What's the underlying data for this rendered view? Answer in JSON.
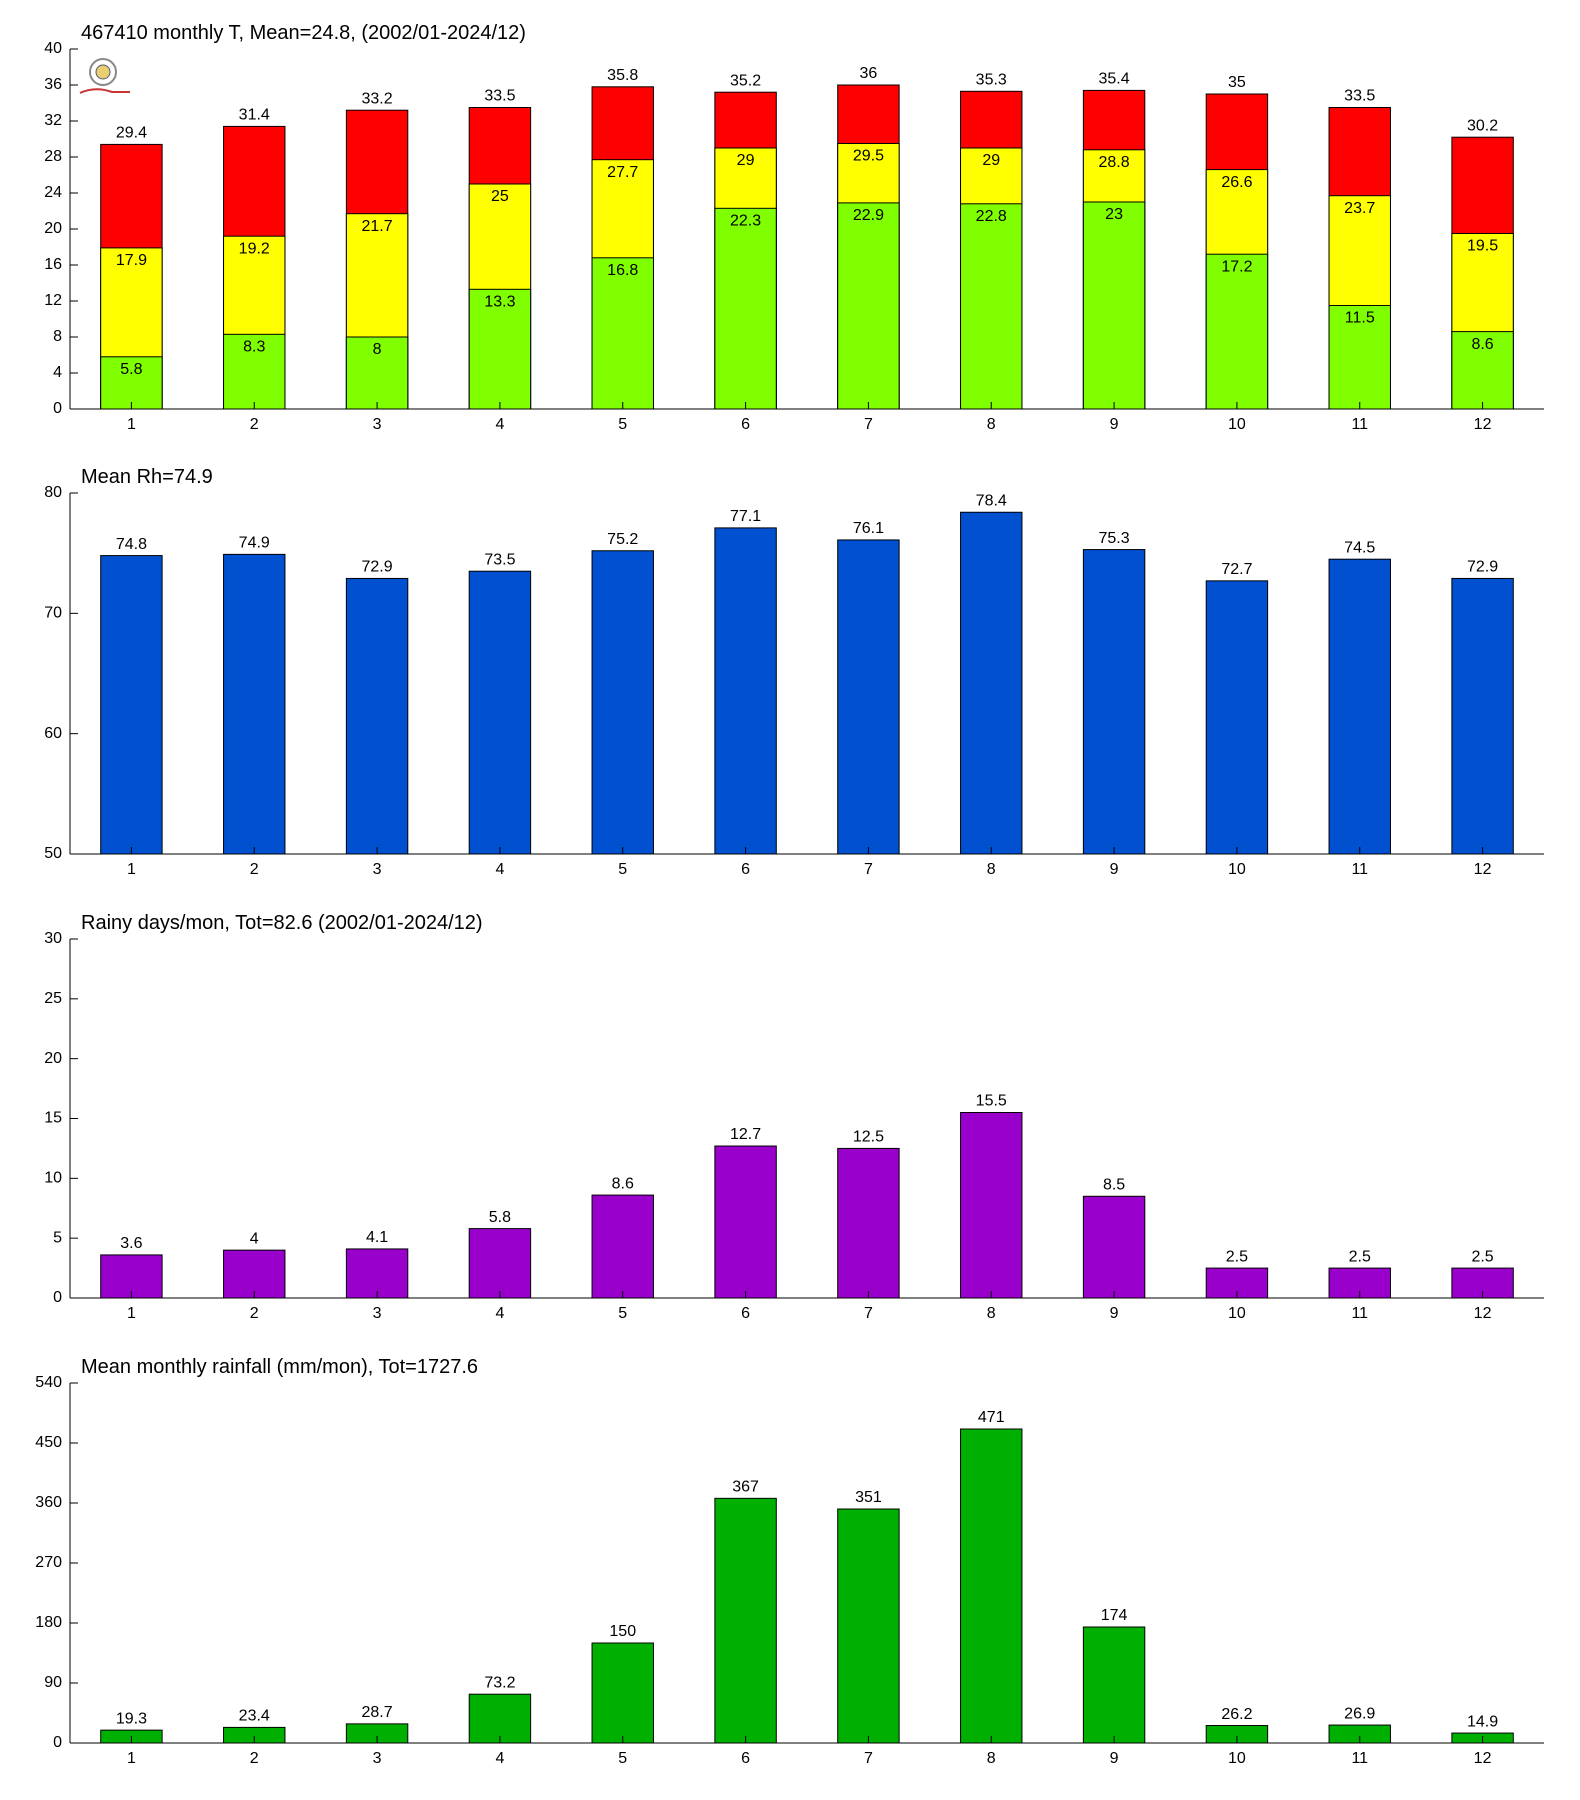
{
  "chart_data": [
    {
      "type": "bar",
      "title": "467410 monthly T, Mean=24.8, (2002/01-2024/12)",
      "categories": [
        1,
        2,
        3,
        4,
        5,
        6,
        7,
        8,
        9,
        10,
        11,
        12
      ],
      "series": [
        {
          "color": "#ff0000",
          "values": [
            29.4,
            31.4,
            33.2,
            33.5,
            35.8,
            35.2,
            36,
            35.3,
            35.4,
            35,
            33.5,
            30.2
          ]
        },
        {
          "color": "#ffff00",
          "values": [
            17.9,
            19.2,
            21.7,
            25,
            27.7,
            29,
            29.5,
            29,
            28.8,
            26.6,
            23.7,
            19.5
          ]
        },
        {
          "color": "#80ff00",
          "values": [
            5.8,
            8.3,
            8,
            13.3,
            16.8,
            22.3,
            22.9,
            22.8,
            23,
            17.2,
            11.5,
            8.6
          ]
        }
      ],
      "ylim": [
        0,
        40
      ],
      "yticks": [
        0,
        4,
        8,
        12,
        16,
        20,
        24,
        28,
        32,
        36,
        40
      ]
    },
    {
      "type": "bar",
      "title": "Mean Rh=74.9",
      "categories": [
        1,
        2,
        3,
        4,
        5,
        6,
        7,
        8,
        9,
        10,
        11,
        12
      ],
      "series": [
        {
          "color": "#0050d0",
          "values": [
            74.8,
            74.9,
            72.9,
            73.5,
            75.2,
            77.1,
            76.1,
            78.4,
            75.3,
            72.7,
            74.5,
            72.9
          ]
        }
      ],
      "ylim": [
        50,
        80
      ],
      "yticks": [
        50,
        60,
        70,
        80
      ]
    },
    {
      "type": "bar",
      "title": "Rainy days/mon, Tot=82.6 (2002/01-2024/12)",
      "categories": [
        1,
        2,
        3,
        4,
        5,
        6,
        7,
        8,
        9,
        10,
        11,
        12
      ],
      "series": [
        {
          "color": "#9900cc",
          "values": [
            3.6,
            4,
            4.1,
            5.8,
            8.6,
            12.7,
            12.5,
            15.5,
            8.5,
            2.5,
            2.5,
            2.5
          ]
        }
      ],
      "ylim": [
        0,
        30
      ],
      "yticks": [
        0,
        5,
        10,
        15,
        20,
        25,
        30
      ]
    },
    {
      "type": "bar",
      "title": "Mean monthly rainfall (mm/mon), Tot=1727.6",
      "categories": [
        1,
        2,
        3,
        4,
        5,
        6,
        7,
        8,
        9,
        10,
        11,
        12
      ],
      "series": [
        {
          "color": "#00b000",
          "values": [
            19.3,
            23.4,
            28.7,
            73.2,
            150,
            367,
            351,
            471,
            174,
            26.2,
            26.9,
            14.9
          ]
        }
      ],
      "ylim": [
        0,
        540
      ],
      "yticks": [
        0,
        90,
        180,
        270,
        360,
        450,
        540
      ]
    }
  ]
}
